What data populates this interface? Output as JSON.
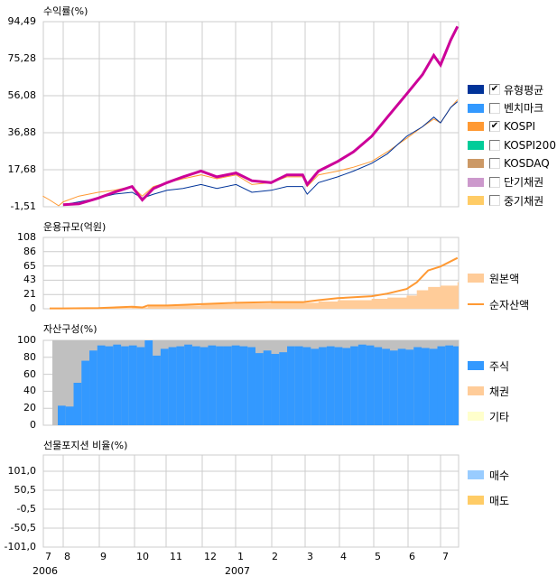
{
  "colors": {
    "fund": "#cc0099",
    "avg": "#003399",
    "benchmark": "#3399ff",
    "kospi": "#ff9933",
    "kospi200": "#00cc99",
    "kosdaq": "#cc9966",
    "short_bond": "#cc99cc",
    "mid_bond": "#ffcc66",
    "principal": "#ffcc99",
    "nav": "#ff9933",
    "stock": "#3399ff",
    "bond": "#ffcc99",
    "other": "#ffffcc",
    "cash_gray": "#c0c0c0",
    "buy": "#99ccff",
    "sell": "#ffcc66",
    "grid": "#cccccc"
  },
  "x_axis": {
    "month_labels": [
      "7",
      "8",
      "9",
      "10",
      "11",
      "12",
      "1",
      "2",
      "3",
      "4",
      "5",
      "6",
      "7"
    ],
    "year_labels": [
      "2006",
      "2007"
    ]
  },
  "chart_data": [
    {
      "type": "line",
      "title": "수익률(%)",
      "ylim": [
        -1.51,
        94.49
      ],
      "yticks": [
        "94,49",
        "75,28",
        "56,08",
        "36,88",
        "17,68",
        "-1,51"
      ],
      "grid": true,
      "x": [
        "2006-07-14",
        "2006-07-20",
        "2006-07-28",
        "2006-08-01",
        "2006-08-15",
        "2006-09-01",
        "2006-09-15",
        "2006-10-01",
        "2006-10-10",
        "2006-10-20",
        "2006-11-01",
        "2006-11-15",
        "2006-12-01",
        "2006-12-15",
        "2007-01-01",
        "2007-01-15",
        "2007-02-01",
        "2007-02-15",
        "2007-03-01",
        "2007-03-05",
        "2007-03-15",
        "2007-04-01",
        "2007-04-15",
        "2007-05-01",
        "2007-05-15",
        "2007-06-01",
        "2007-06-15",
        "2007-06-25",
        "2007-07-01",
        "2007-07-10",
        "2007-07-16"
      ],
      "series": [
        {
          "key": "kospi",
          "values": [
            4,
            2,
            -1,
            1,
            4,
            6,
            7,
            9,
            4,
            9,
            11,
            13,
            15,
            13,
            15,
            10,
            11,
            14,
            14,
            9,
            15,
            17,
            19,
            22,
            27,
            34,
            40,
            44,
            42,
            50,
            54
          ]
        },
        {
          "key": "avg",
          "values": [
            null,
            null,
            null,
            -0.5,
            1,
            3,
            5,
            6,
            3,
            5,
            7,
            8,
            10,
            8,
            10,
            6,
            7,
            9,
            9,
            5,
            11,
            14,
            17,
            21,
            26,
            35,
            40,
            45,
            42,
            50,
            53
          ]
        },
        {
          "key": "fund",
          "values": [
            null,
            null,
            null,
            -0.5,
            0,
            3,
            6,
            9,
            2,
            8,
            11,
            14,
            17,
            14,
            16,
            12,
            11,
            15,
            15,
            10,
            17,
            22,
            27,
            35,
            45,
            57,
            67,
            77,
            72,
            85,
            92
          ]
        }
      ],
      "legend": [
        {
          "key": "avg",
          "label": "유형평균",
          "checked": true
        },
        {
          "key": "benchmark",
          "label": "벤치마크",
          "checked": false
        },
        {
          "key": "kospi",
          "label": "KOSPI",
          "checked": true
        },
        {
          "key": "kospi200",
          "label": "KOSPI200",
          "checked": false
        },
        {
          "key": "kosdaq",
          "label": "KOSDAQ",
          "checked": false
        },
        {
          "key": "short_bond",
          "label": "단기채권",
          "checked": false
        },
        {
          "key": "mid_bond",
          "label": "중기채권",
          "checked": false
        }
      ]
    },
    {
      "type": "area",
      "title": "운용규모(억원)",
      "ylim": [
        0,
        108
      ],
      "yticks": [
        "108",
        "86",
        "65",
        "43",
        "21",
        "0"
      ],
      "grid": true,
      "x": [
        "2006-07-20",
        "2006-08-01",
        "2006-09-01",
        "2006-10-01",
        "2006-10-10",
        "2006-10-15",
        "2006-11-01",
        "2006-12-01",
        "2007-01-01",
        "2007-02-01",
        "2007-03-01",
        "2007-03-15",
        "2007-04-01",
        "2007-05-01",
        "2007-05-15",
        "2007-06-01",
        "2007-06-10",
        "2007-06-20",
        "2007-07-01",
        "2007-07-16"
      ],
      "series": [
        {
          "key": "principal",
          "name": "원본액",
          "values": [
            0,
            0,
            1,
            3,
            2,
            4,
            5,
            7,
            8,
            9,
            9,
            11,
            13,
            15,
            17,
            20,
            28,
            33,
            35,
            40
          ]
        },
        {
          "key": "nav",
          "name": "순자산액",
          "values": [
            0.5,
            0.5,
            1,
            3,
            2,
            5,
            5,
            7,
            9,
            10,
            10,
            13,
            16,
            19,
            23,
            30,
            40,
            58,
            64,
            77
          ]
        }
      ]
    },
    {
      "type": "bar",
      "title": "자산구성(%)",
      "ylim": [
        0,
        100
      ],
      "yticks": [
        "100",
        "80",
        "60",
        "40",
        "20",
        "0"
      ],
      "grid": true,
      "x_start": "2006-07-14",
      "interval_days": 7,
      "series": [
        {
          "key": "stock",
          "name": "주식",
          "values": [
            0,
            0,
            23,
            22,
            50,
            76,
            88,
            94,
            93,
            95,
            93,
            94,
            92,
            100,
            82,
            90,
            92,
            93,
            95,
            93,
            92,
            94,
            93,
            93,
            94,
            93,
            92,
            85,
            88,
            84,
            86,
            93,
            93,
            92,
            90,
            92,
            93,
            92,
            91,
            93,
            95,
            94,
            92,
            90,
            88,
            90,
            89,
            92,
            91,
            90,
            93,
            94,
            93
          ]
        },
        {
          "key": "bond",
          "name": "채권",
          "values": []
        },
        {
          "key": "other",
          "name": "기타",
          "values": []
        }
      ]
    },
    {
      "type": "bar",
      "title": "선물포지션 비율(%)",
      "ylim": [
        -101.0,
        101.0
      ],
      "yticks": [
        "101,0",
        "50,5",
        "-0,5",
        "-50,5",
        "-101,0"
      ],
      "grid": true,
      "series": [
        {
          "key": "buy",
          "name": "매수",
          "values": []
        },
        {
          "key": "sell",
          "name": "매도",
          "values": []
        }
      ]
    }
  ]
}
